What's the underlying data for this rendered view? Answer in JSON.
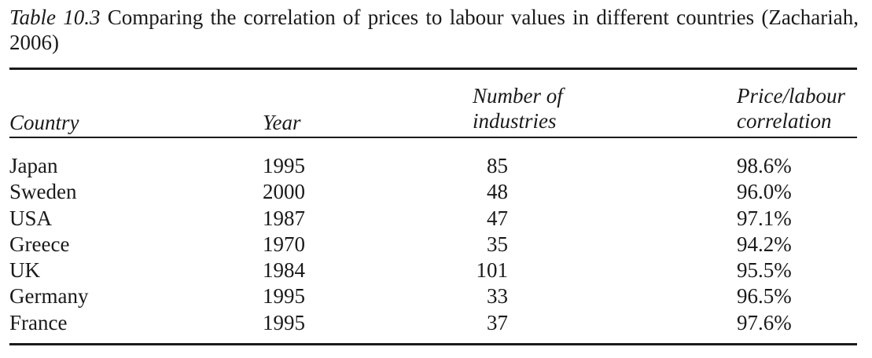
{
  "caption": {
    "label": "Table 10.3",
    "text": "Comparing the correlation of prices to labour values in different countries (Zachariah, 2006)"
  },
  "headers": {
    "country": "Country",
    "year": "Year",
    "industries_line1": "Number of",
    "industries_line2": "industries",
    "correlation_line1": "Price/labour",
    "correlation_line2": "correlation"
  },
  "rows": [
    {
      "country": "Japan",
      "year": "1995",
      "industries": "85",
      "correlation": "98.6%"
    },
    {
      "country": "Sweden",
      "year": "2000",
      "industries": "48",
      "correlation": "96.0%"
    },
    {
      "country": "USA",
      "year": "1987",
      "industries": "47",
      "correlation": "97.1%"
    },
    {
      "country": "Greece",
      "year": "1970",
      "industries": "35",
      "correlation": "94.2%"
    },
    {
      "country": "UK",
      "year": "1984",
      "industries": "101",
      "correlation": "95.5%"
    },
    {
      "country": "Germany",
      "year": "1995",
      "industries": "33",
      "correlation": "96.5%"
    },
    {
      "country": "France",
      "year": "1995",
      "industries": "37",
      "correlation": "97.6%"
    }
  ]
}
